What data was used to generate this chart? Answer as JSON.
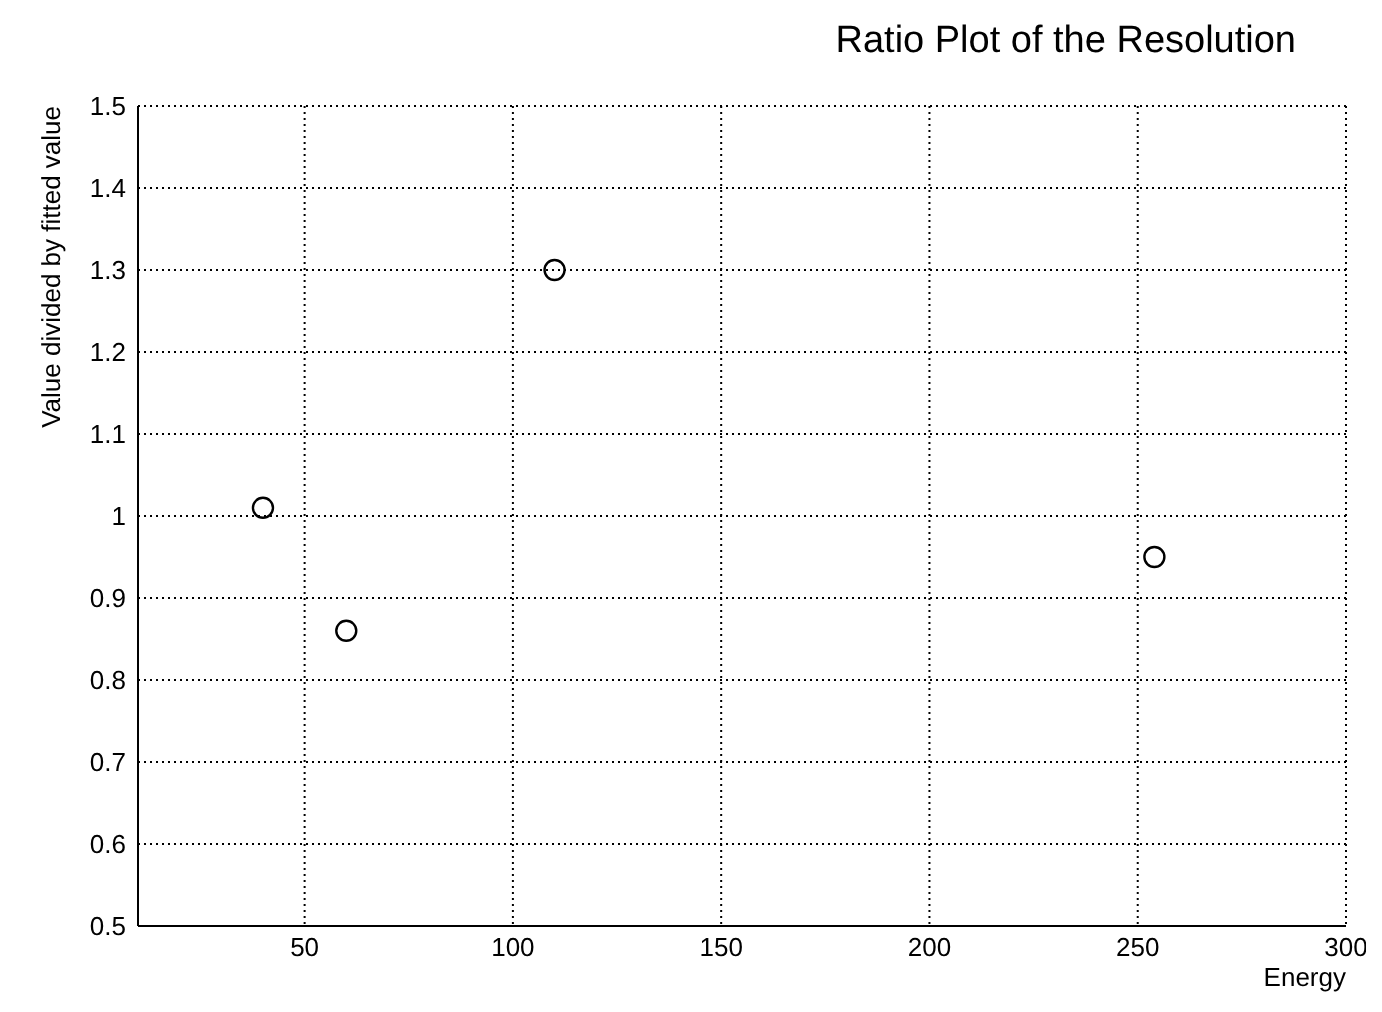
{
  "chart_data": {
    "type": "scatter",
    "title": "Ratio Plot of the Resolution",
    "xlabel": "Energy",
    "ylabel": "Value divided by fitted value",
    "x": [
      40,
      60,
      110,
      254
    ],
    "series": [
      {
        "color": "#000000",
        "values": [
          1.01,
          0.86,
          1.3,
          0.95
        ]
      }
    ],
    "xlim": [
      10,
      300
    ],
    "xticks": [
      50,
      100,
      150,
      200,
      250,
      300
    ],
    "ylim": [
      0.5,
      1.5
    ],
    "yticks": [
      0.5,
      0.6,
      0.7,
      0.8,
      0.9,
      1,
      1.1,
      1.2,
      1.3,
      1.4,
      1.5
    ],
    "grid": true,
    "marker": "circle",
    "legend": false
  }
}
